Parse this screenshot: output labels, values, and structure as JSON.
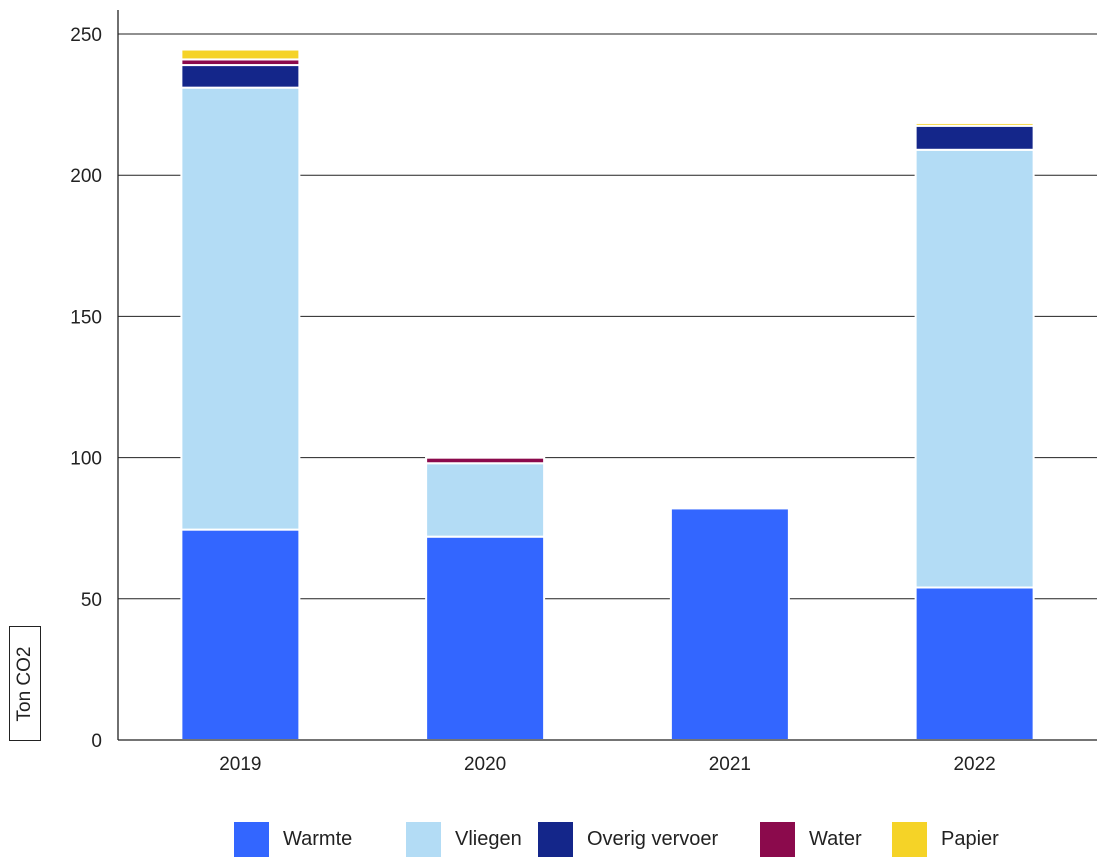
{
  "chart_data": {
    "type": "bar",
    "stacked": true,
    "categories": [
      "2019",
      "2020",
      "2021",
      "2022"
    ],
    "series": [
      {
        "name": "Warmte",
        "color": "#3366ff",
        "values": [
          74.5,
          72,
          82,
          54
        ]
      },
      {
        "name": "Vliegen",
        "color": "#b3dcf5",
        "values": [
          156.5,
          26,
          0,
          155
        ]
      },
      {
        "name": "Overig vervoer",
        "color": "#14268a",
        "values": [
          8,
          0,
          0,
          8.5
        ]
      },
      {
        "name": "Water",
        "color": "#8b0a4c",
        "values": [
          2,
          2,
          0,
          0
        ]
      },
      {
        "name": "Papier",
        "color": "#f5d327",
        "values": [
          3.5,
          0.6,
          0,
          1
        ]
      }
    ],
    "ylabel": "Ton CO2",
    "xlabel": "",
    "ylim": [
      0,
      250
    ],
    "yticks": [
      0,
      50,
      100,
      150,
      200,
      250
    ],
    "grid": true,
    "legend_position": "bottom"
  }
}
